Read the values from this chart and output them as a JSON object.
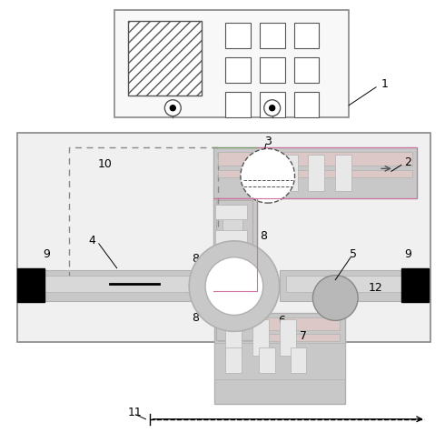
{
  "bg_color": "#ffffff",
  "gray": "#888888",
  "dark_gray": "#555555",
  "wg_gray": "#aaaaaa",
  "wg_light": "#cccccc",
  "fig_width": 4.9,
  "fig_height": 4.87,
  "dpi": 100
}
